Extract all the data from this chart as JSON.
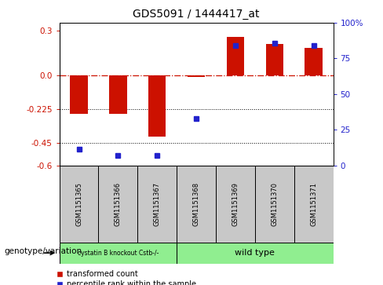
{
  "title": "GDS5091 / 1444417_at",
  "samples": [
    "GSM1151365",
    "GSM1151366",
    "GSM1151367",
    "GSM1151368",
    "GSM1151369",
    "GSM1151370",
    "GSM1151371"
  ],
  "red_bars": [
    -0.255,
    -0.255,
    -0.41,
    -0.01,
    0.255,
    0.21,
    0.185
  ],
  "blue_dots": [
    -0.49,
    -0.535,
    -0.535,
    -0.29,
    0.2,
    0.215,
    0.2
  ],
  "red_left_ticks": [
    0.3,
    0.0,
    -0.225,
    -0.45,
    -0.6
  ],
  "right_ticks": [
    100,
    75,
    50,
    25,
    0
  ],
  "ylim": [
    -0.6,
    0.35
  ],
  "right_ylim": [
    0,
    100
  ],
  "hline_y": 0.0,
  "dotted_lines": [
    -0.225,
    -0.45
  ],
  "group1_label": "cystatin B knockout Cstb-/-",
  "group2_label": "wild type",
  "group1_color": "#90ee90",
  "group2_color": "#90ee90",
  "bar_color": "#cc1100",
  "dot_color": "#2222cc",
  "legend_label_red": "transformed count",
  "legend_label_blue": "percentile rank within the sample",
  "xlabel_label": "genotype/variation",
  "bar_width": 0.45,
  "dot_size": 40,
  "tick_label_color_left": "#cc1100",
  "tick_label_color_right": "#2222cc",
  "gray_box_color": "#c8c8c8",
  "n_group1": 3,
  "n_group2": 4
}
